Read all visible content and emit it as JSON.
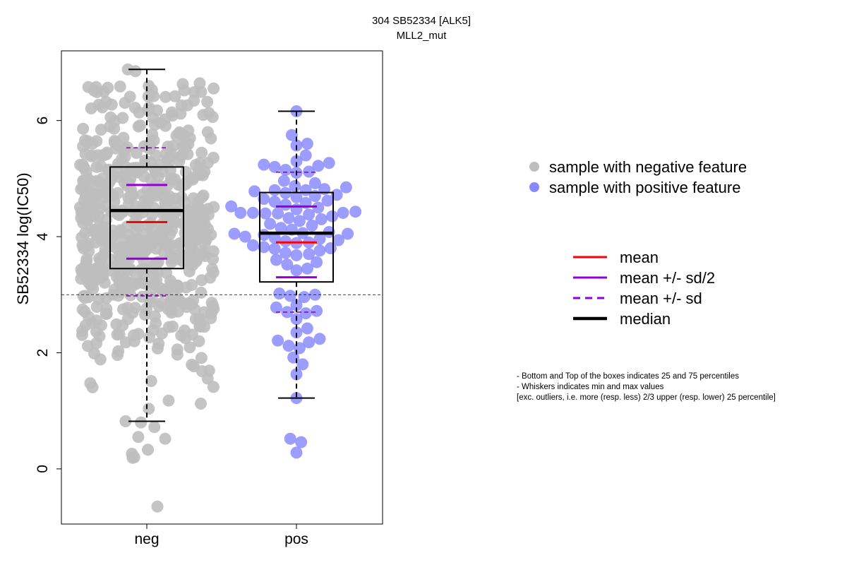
{
  "chart_data": {
    "type": "boxplot-beeswarm",
    "title": "304 SB52334 [ALK5]",
    "subtitle": "MLL2_mut",
    "ylabel": "SB52334 log(IC50)",
    "ylim": [
      -0.95,
      7.2
    ],
    "yticks": [
      "0",
      "2",
      "4",
      "6"
    ],
    "reference_line": 3.0,
    "categories": [
      "neg",
      "pos"
    ],
    "groups": [
      {
        "name": "neg",
        "color": "#bebebe",
        "whisker_low": 0.82,
        "q1": 3.45,
        "median": 4.45,
        "q3": 5.2,
        "whisker_high": 6.88,
        "mean": 4.25,
        "mean_minus_half_sd": 3.62,
        "mean_plus_half_sd": 4.89,
        "mean_minus_sd": 2.98,
        "mean_plus_sd": 5.53,
        "n_points": 640,
        "extreme_points": [
          6.88,
          6.85,
          0.82,
          0.8,
          0.72,
          0.55,
          0.52,
          0.33,
          0.26,
          0.2,
          0.19,
          -0.65
        ]
      },
      {
        "name": "pos",
        "color": "#8888ff",
        "whisker_low": 1.22,
        "q1": 3.22,
        "median": 4.06,
        "q3": 4.76,
        "whisker_high": 6.16,
        "mean": 3.9,
        "mean_minus_half_sd": 3.3,
        "mean_plus_half_sd": 4.52,
        "mean_minus_sd": 2.7,
        "mean_plus_sd": 5.11,
        "points": [
          6.16,
          5.75,
          5.6,
          5.57,
          5.4,
          5.3,
          5.27,
          5.24,
          5.22,
          5.2,
          5.15,
          5.12,
          5.1,
          4.96,
          4.92,
          4.87,
          4.85,
          4.82,
          4.8,
          4.8,
          4.78,
          4.75,
          4.72,
          4.7,
          4.68,
          4.65,
          4.62,
          4.6,
          4.58,
          4.55,
          4.52,
          4.5,
          4.47,
          4.43,
          4.41,
          4.41,
          4.41,
          4.4,
          4.4,
          4.38,
          4.35,
          4.32,
          4.3,
          4.27,
          4.22,
          4.19,
          4.15,
          4.12,
          4.08,
          4.06,
          4.05,
          4.05,
          4.03,
          4.0,
          3.98,
          3.96,
          3.94,
          3.92,
          3.9,
          3.89,
          3.85,
          3.82,
          3.8,
          3.79,
          3.76,
          3.72,
          3.7,
          3.68,
          3.6,
          3.56,
          3.52,
          3.45,
          3.42,
          3.02,
          3.0,
          2.98,
          2.96,
          2.82,
          2.78,
          2.72,
          2.7,
          2.68,
          2.58,
          2.42,
          2.35,
          2.24,
          2.21,
          2.18,
          2.12,
          2.08,
          1.92,
          1.8,
          1.63,
          1.22,
          0.52,
          0.46,
          0.28
        ]
      }
    ],
    "legend_points": [
      {
        "label": "sample with negative feature",
        "color": "#bebebe"
      },
      {
        "label": "sample with positive feature",
        "color": "#8888ff"
      }
    ],
    "legend_lines": [
      {
        "label": "mean",
        "color": "#ff0000",
        "style": "solid"
      },
      {
        "label": "mean +/- sd/2",
        "color": "#9400d3",
        "style": "solid"
      },
      {
        "label": "mean +/- sd",
        "color": "#9400d3",
        "style": "dashed"
      },
      {
        "label": "median",
        "color": "#000000",
        "style": "solid-thick"
      }
    ],
    "notes": [
      "- Bottom and Top of the boxes indicates 25 and 75 percentiles",
      "- Whiskers indicates min and max values",
      "[exc. outliers, i.e. more (resp. less) 2/3 upper (resp. lower) 25 percentile]"
    ]
  }
}
